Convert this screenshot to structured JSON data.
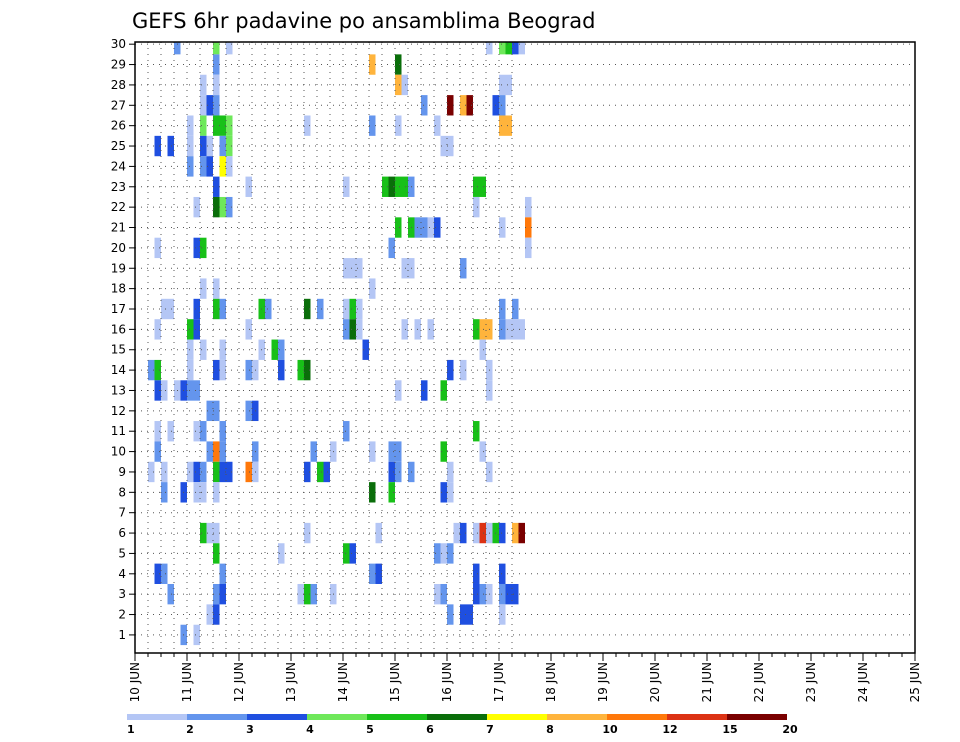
{
  "chart_data": {
    "type": "heatmap",
    "title": "GEFS 6hr padavine po ansamblima Beograd",
    "x_tick_labels": [
      "10 JUN",
      "11 JUN",
      "12 JUN",
      "13 JUN",
      "14 JUN",
      "15 JUN",
      "16 JUN",
      "17 JUN",
      "18 JUN",
      "19 JUN",
      "20 JUN",
      "21 JUN",
      "22 JUN",
      "23 JUN",
      "24 JUN",
      "25 JUN"
    ],
    "y_tick_labels": [
      "1",
      "2",
      "3",
      "4",
      "5",
      "6",
      "7",
      "8",
      "9",
      "10",
      "11",
      "12",
      "13",
      "14",
      "15",
      "16",
      "17",
      "18",
      "19",
      "20",
      "21",
      "22",
      "23",
      "24",
      "25",
      "26",
      "27",
      "28",
      "29",
      "30"
    ],
    "xlim": [
      0,
      60
    ],
    "ylim": [
      0,
      30
    ],
    "grid": true,
    "colorbar": {
      "colors": [
        "#b4c6f5",
        "#6495ed",
        "#1f4fe0",
        "#6ee85a",
        "#18c018",
        "#0a6e0a",
        "#ffff00",
        "#ffb43c",
        "#ff780a",
        "#dc3214",
        "#7a0000"
      ],
      "labels": [
        "1",
        "2",
        "3",
        "4",
        "5",
        "6",
        "7",
        "8",
        "10",
        "12",
        "15",
        "20"
      ]
    },
    "cells": [
      [
        3,
        30,
        2
      ],
      [
        6,
        30,
        4
      ],
      [
        7,
        30,
        1
      ],
      [
        27,
        30,
        1
      ],
      [
        28,
        30,
        4
      ],
      [
        28.5,
        30,
        5
      ],
      [
        29,
        30,
        3
      ],
      [
        29.5,
        30,
        1
      ],
      [
        6,
        29,
        2
      ],
      [
        18,
        29,
        8
      ],
      [
        20,
        29,
        6
      ],
      [
        5,
        28,
        1
      ],
      [
        6,
        28,
        1
      ],
      [
        20,
        28,
        8
      ],
      [
        20.5,
        28,
        1
      ],
      [
        28,
        28,
        1
      ],
      [
        28.5,
        28,
        1
      ],
      [
        5,
        27,
        1
      ],
      [
        5.5,
        27,
        3
      ],
      [
        6,
        27,
        2
      ],
      [
        22,
        27,
        2
      ],
      [
        24,
        27,
        11
      ],
      [
        25,
        27,
        8
      ],
      [
        25.5,
        27,
        11
      ],
      [
        27.5,
        27,
        3
      ],
      [
        28,
        27,
        2
      ],
      [
        4,
        26,
        1
      ],
      [
        5,
        26,
        4
      ],
      [
        6,
        26,
        5
      ],
      [
        6.5,
        26,
        5
      ],
      [
        7,
        26,
        4
      ],
      [
        13,
        26,
        1
      ],
      [
        18,
        26,
        2
      ],
      [
        20,
        26,
        1
      ],
      [
        23,
        26,
        1
      ],
      [
        28,
        26,
        8
      ],
      [
        28.5,
        26,
        8
      ],
      [
        1.5,
        25,
        3
      ],
      [
        2.5,
        25,
        3
      ],
      [
        4,
        25,
        1
      ],
      [
        5,
        25,
        3
      ],
      [
        5.5,
        25,
        1
      ],
      [
        6.5,
        25,
        2
      ],
      [
        7,
        25,
        4
      ],
      [
        23.5,
        25,
        1
      ],
      [
        24,
        25,
        1
      ],
      [
        4,
        24,
        2
      ],
      [
        5,
        24,
        2
      ],
      [
        5.5,
        24,
        3
      ],
      [
        6.5,
        24,
        7
      ],
      [
        7,
        24,
        1
      ],
      [
        6,
        23,
        3
      ],
      [
        8.5,
        23,
        1
      ],
      [
        16,
        23,
        1
      ],
      [
        19,
        23,
        5
      ],
      [
        19.5,
        23,
        6
      ],
      [
        20,
        23,
        5
      ],
      [
        20.5,
        23,
        5
      ],
      [
        21,
        23,
        2
      ],
      [
        26,
        23,
        5
      ],
      [
        26.5,
        23,
        5
      ],
      [
        4.5,
        22,
        1
      ],
      [
        6,
        22,
        6
      ],
      [
        6.5,
        22,
        4
      ],
      [
        7,
        22,
        2
      ],
      [
        26,
        22,
        1
      ],
      [
        30,
        22,
        1
      ],
      [
        20,
        21,
        5
      ],
      [
        21,
        21,
        5
      ],
      [
        21.5,
        21,
        2
      ],
      [
        22,
        21,
        2
      ],
      [
        22.5,
        21,
        1
      ],
      [
        23,
        21,
        3
      ],
      [
        28,
        21,
        1
      ],
      [
        30,
        21,
        9
      ],
      [
        1.5,
        20,
        1
      ],
      [
        4.5,
        20,
        3
      ],
      [
        5,
        20,
        5
      ],
      [
        19.5,
        20,
        2
      ],
      [
        30,
        20,
        1
      ],
      [
        16,
        19,
        1
      ],
      [
        16.5,
        19,
        1
      ],
      [
        17,
        19,
        1
      ],
      [
        20.5,
        19,
        1
      ],
      [
        21,
        19,
        1
      ],
      [
        25,
        19,
        2
      ],
      [
        5,
        18,
        1
      ],
      [
        6,
        18,
        1
      ],
      [
        18,
        18,
        1
      ],
      [
        2,
        17,
        1
      ],
      [
        2.5,
        17,
        1
      ],
      [
        4.5,
        17,
        3
      ],
      [
        6,
        17,
        5
      ],
      [
        6.5,
        17,
        2
      ],
      [
        9.5,
        17,
        5
      ],
      [
        10,
        17,
        2
      ],
      [
        13,
        17,
        6
      ],
      [
        14,
        17,
        2
      ],
      [
        16,
        17,
        1
      ],
      [
        16.5,
        17,
        5
      ],
      [
        17,
        17,
        1
      ],
      [
        28,
        17,
        2
      ],
      [
        29,
        17,
        2
      ],
      [
        1.5,
        16,
        1
      ],
      [
        4,
        16,
        5
      ],
      [
        4.5,
        16,
        3
      ],
      [
        8.5,
        16,
        1
      ],
      [
        16,
        16,
        2
      ],
      [
        16.5,
        16,
        6
      ],
      [
        17,
        16,
        1
      ],
      [
        20.5,
        16,
        1
      ],
      [
        21.5,
        16,
        1
      ],
      [
        22.5,
        16,
        1
      ],
      [
        26,
        16,
        5
      ],
      [
        26.5,
        16,
        8
      ],
      [
        27,
        16,
        8
      ],
      [
        28,
        16,
        2
      ],
      [
        28.5,
        16,
        1
      ],
      [
        29,
        16,
        1
      ],
      [
        29.5,
        16,
        1
      ],
      [
        4,
        15,
        1
      ],
      [
        5,
        15,
        1
      ],
      [
        6.5,
        15,
        1
      ],
      [
        9.5,
        15,
        1
      ],
      [
        10.5,
        15,
        5
      ],
      [
        11,
        15,
        2
      ],
      [
        17.5,
        15,
        3
      ],
      [
        26.5,
        15,
        1
      ],
      [
        1,
        14,
        2
      ],
      [
        1.5,
        14,
        5
      ],
      [
        4,
        14,
        1
      ],
      [
        6,
        14,
        3
      ],
      [
        6.5,
        14,
        1
      ],
      [
        8.5,
        14,
        2
      ],
      [
        9,
        14,
        1
      ],
      [
        11,
        14,
        3
      ],
      [
        12.5,
        14,
        5
      ],
      [
        13,
        14,
        6
      ],
      [
        24,
        14,
        3
      ],
      [
        25,
        14,
        1
      ],
      [
        27,
        14,
        1
      ],
      [
        1.5,
        13,
        3
      ],
      [
        2,
        13,
        1
      ],
      [
        3,
        13,
        1
      ],
      [
        3.5,
        13,
        3
      ],
      [
        4,
        13,
        2
      ],
      [
        4.5,
        13,
        2
      ],
      [
        20,
        13,
        1
      ],
      [
        22,
        13,
        3
      ],
      [
        23.5,
        13,
        5
      ],
      [
        27,
        13,
        1
      ],
      [
        5.5,
        12,
        2
      ],
      [
        6,
        12,
        2
      ],
      [
        8.5,
        12,
        2
      ],
      [
        9,
        12,
        3
      ],
      [
        1.5,
        11,
        1
      ],
      [
        2.5,
        11,
        1
      ],
      [
        4.5,
        11,
        1
      ],
      [
        5,
        11,
        2
      ],
      [
        6.5,
        11,
        2
      ],
      [
        16,
        11,
        2
      ],
      [
        26,
        11,
        5
      ],
      [
        1.5,
        10,
        2
      ],
      [
        5.5,
        10,
        2
      ],
      [
        6,
        10,
        9
      ],
      [
        6.5,
        10,
        2
      ],
      [
        9,
        10,
        2
      ],
      [
        13.5,
        10,
        2
      ],
      [
        15,
        10,
        1
      ],
      [
        18,
        10,
        1
      ],
      [
        19.5,
        10,
        2
      ],
      [
        20,
        10,
        2
      ],
      [
        23.5,
        10,
        5
      ],
      [
        26.5,
        10,
        1
      ],
      [
        1,
        9,
        1
      ],
      [
        2,
        9,
        1
      ],
      [
        4,
        9,
        1
      ],
      [
        4.5,
        9,
        3
      ],
      [
        5,
        9,
        2
      ],
      [
        6,
        9,
        5
      ],
      [
        6.5,
        9,
        3
      ],
      [
        7,
        9,
        3
      ],
      [
        8.5,
        9,
        9
      ],
      [
        9,
        9,
        1
      ],
      [
        13,
        9,
        3
      ],
      [
        14,
        9,
        5
      ],
      [
        14.5,
        9,
        3
      ],
      [
        19.5,
        9,
        3
      ],
      [
        20,
        9,
        2
      ],
      [
        21,
        9,
        2
      ],
      [
        24,
        9,
        1
      ],
      [
        27,
        9,
        1
      ],
      [
        2,
        8,
        2
      ],
      [
        3.5,
        8,
        3
      ],
      [
        4.5,
        8,
        1
      ],
      [
        5,
        8,
        1
      ],
      [
        6,
        8,
        1
      ],
      [
        18,
        8,
        6
      ],
      [
        19.5,
        8,
        5
      ],
      [
        23.5,
        8,
        3
      ],
      [
        24,
        8,
        1
      ],
      [
        5,
        6,
        5
      ],
      [
        5.5,
        6,
        1
      ],
      [
        6,
        6,
        1
      ],
      [
        13,
        6,
        1
      ],
      [
        18.5,
        6,
        1
      ],
      [
        24.5,
        6,
        1
      ],
      [
        25,
        6,
        3
      ],
      [
        26,
        6,
        1
      ],
      [
        26.5,
        6,
        10
      ],
      [
        27,
        6,
        1
      ],
      [
        27.5,
        6,
        5
      ],
      [
        28,
        6,
        3
      ],
      [
        29,
        6,
        8
      ],
      [
        29.5,
        6,
        11
      ],
      [
        6,
        5,
        5
      ],
      [
        11,
        5,
        1
      ],
      [
        16,
        5,
        5
      ],
      [
        16.5,
        5,
        3
      ],
      [
        23,
        5,
        2
      ],
      [
        23.5,
        5,
        1
      ],
      [
        24,
        5,
        2
      ],
      [
        1.5,
        4,
        3
      ],
      [
        2,
        4,
        2
      ],
      [
        6.5,
        4,
        2
      ],
      [
        18,
        4,
        2
      ],
      [
        18.5,
        4,
        3
      ],
      [
        26,
        4,
        3
      ],
      [
        28,
        4,
        3
      ],
      [
        2.5,
        3,
        2
      ],
      [
        6,
        3,
        2
      ],
      [
        6.5,
        3,
        3
      ],
      [
        12.5,
        3,
        1
      ],
      [
        13,
        3,
        5
      ],
      [
        13.5,
        3,
        2
      ],
      [
        15,
        3,
        1
      ],
      [
        23,
        3,
        1
      ],
      [
        23.5,
        3,
        2
      ],
      [
        26,
        3,
        3
      ],
      [
        26.5,
        3,
        2
      ],
      [
        27,
        3,
        1
      ],
      [
        28,
        3,
        2
      ],
      [
        28.5,
        3,
        3
      ],
      [
        29,
        3,
        3
      ],
      [
        5.5,
        2,
        1
      ],
      [
        6,
        2,
        3
      ],
      [
        24,
        2,
        2
      ],
      [
        25,
        2,
        3
      ],
      [
        25.5,
        2,
        3
      ],
      [
        28,
        2,
        1
      ],
      [
        3.5,
        1,
        2
      ],
      [
        4.5,
        1,
        1
      ]
    ]
  }
}
